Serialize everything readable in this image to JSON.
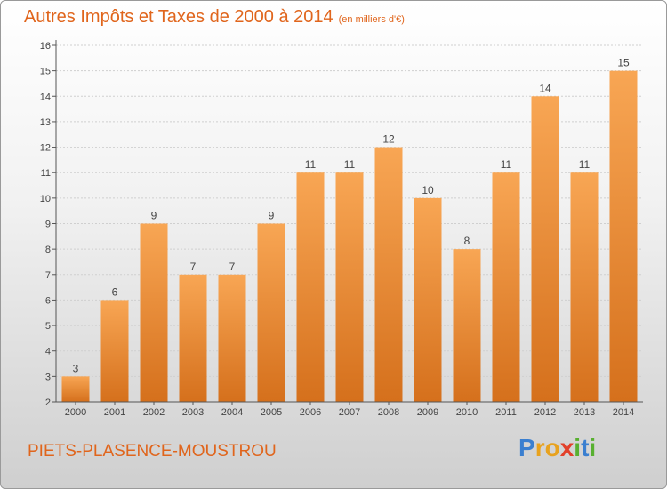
{
  "title": "Autres Impôts et Taxes de 2000 à 2014",
  "unit": "(en milliers d'€)",
  "commune": "PIETS-PLASENCE-MOUSTROU",
  "brand": {
    "text": "Proxiti",
    "letters": [
      {
        "ch": "P",
        "color": "#3a7fd0"
      },
      {
        "ch": "r",
        "color": "#e8a21e"
      },
      {
        "ch": "o",
        "color": "#e8a21e"
      },
      {
        "ch": "x",
        "color": "#e2402a"
      },
      {
        "ch": "i",
        "color": "#58b030"
      },
      {
        "ch": "t",
        "color": "#3a7fd0"
      },
      {
        "ch": "i",
        "color": "#58b030"
      }
    ]
  },
  "colors": {
    "accent": "#e0651c",
    "bar_top": "#f8a654",
    "bar_bottom": "#d5701c",
    "grid": "#cfcfcf",
    "axis": "#555555"
  },
  "chart_data": {
    "type": "bar",
    "categories": [
      "2000",
      "2001",
      "2002",
      "2003",
      "2004",
      "2005",
      "2006",
      "2007",
      "2008",
      "2009",
      "2010",
      "2011",
      "2012",
      "2013",
      "2014"
    ],
    "values": [
      3,
      6,
      9,
      7,
      7,
      9,
      11,
      11,
      12,
      10,
      8,
      11,
      14,
      11,
      15
    ],
    "data_labels": [
      "3",
      "6",
      "9",
      "7",
      "7",
      "9",
      "11",
      "11",
      "12",
      "10",
      "8",
      "11",
      "14",
      "11",
      "15"
    ],
    "yticks": [
      "2",
      "3",
      "4",
      "5",
      "6",
      "7",
      "8",
      "9",
      "10",
      "11",
      "12",
      "13",
      "14",
      "15",
      "16"
    ],
    "ylim": [
      2,
      16
    ],
    "grid": true,
    "xlabel": "",
    "ylabel": ""
  }
}
